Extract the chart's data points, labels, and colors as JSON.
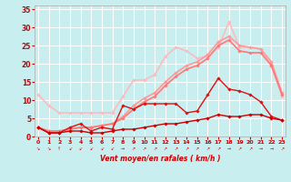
{
  "background_color": "#c8eef0",
  "grid_color": "#ffffff",
  "x_ticks": [
    0,
    1,
    2,
    3,
    4,
    5,
    6,
    7,
    8,
    9,
    10,
    11,
    12,
    13,
    14,
    15,
    16,
    17,
    18,
    19,
    20,
    21,
    22,
    23
  ],
  "xlim": [
    -0.3,
    23.3
  ],
  "ylim": [
    0,
    36
  ],
  "y_ticks": [
    0,
    5,
    10,
    15,
    20,
    25,
    30,
    35
  ],
  "xlabel": "Vent moyen/en rafales ( km/h )",
  "xlabel_color": "#cc0000",
  "tick_color": "#cc0000",
  "series": [
    {
      "name": "light_pink_high",
      "color": "#ffbbbb",
      "linewidth": 1.2,
      "marker": "D",
      "markersize": 1.8,
      "y": [
        11.5,
        8.5,
        6.5,
        6.5,
        6.5,
        6.5,
        6.5,
        6.5,
        11.0,
        15.5,
        15.5,
        17.0,
        22.0,
        24.5,
        23.5,
        21.5,
        22.0,
        24.5,
        31.5,
        24.5,
        24.5,
        24.0,
        19.5,
        11.0
      ]
    },
    {
      "name": "pink_medium_high",
      "color": "#ff9999",
      "linewidth": 1.2,
      "marker": "D",
      "markersize": 1.8,
      "y": [
        2.5,
        1.5,
        1.5,
        2.0,
        2.5,
        2.5,
        3.0,
        3.5,
        5.5,
        8.5,
        10.5,
        12.0,
        15.0,
        17.5,
        19.5,
        20.5,
        22.5,
        26.0,
        27.5,
        25.0,
        24.5,
        24.0,
        20.5,
        12.0
      ]
    },
    {
      "name": "pink_medium",
      "color": "#ff7777",
      "linewidth": 1.2,
      "marker": "D",
      "markersize": 1.8,
      "y": [
        2.5,
        1.5,
        1.5,
        2.0,
        2.5,
        2.5,
        3.0,
        3.5,
        5.0,
        7.5,
        9.5,
        11.0,
        14.0,
        16.5,
        18.5,
        19.5,
        21.5,
        25.0,
        26.5,
        23.5,
        23.0,
        23.0,
        19.5,
        11.5
      ]
    },
    {
      "name": "red_jagged",
      "color": "#dd1111",
      "linewidth": 1.0,
      "marker": "D",
      "markersize": 1.8,
      "y": [
        2.5,
        1.0,
        1.0,
        2.5,
        3.5,
        1.5,
        2.5,
        2.0,
        8.5,
        7.5,
        9.0,
        9.0,
        9.0,
        9.0,
        6.5,
        7.0,
        11.5,
        16.0,
        13.0,
        12.5,
        11.5,
        9.5,
        5.5,
        4.5
      ]
    },
    {
      "name": "red_flat_low",
      "color": "#cc0000",
      "linewidth": 1.0,
      "marker": "D",
      "markersize": 1.8,
      "y": [
        2.5,
        1.0,
        1.0,
        1.5,
        1.5,
        1.0,
        1.0,
        1.5,
        2.0,
        2.0,
        2.5,
        3.0,
        3.5,
        3.5,
        4.0,
        4.5,
        5.0,
        6.0,
        5.5,
        5.5,
        6.0,
        6.0,
        5.0,
        4.5
      ]
    }
  ],
  "arrow_color": "#cc0000",
  "arrow_syms": [
    "↘",
    "↘",
    "↑",
    "↙",
    "↙",
    "↙",
    "↙",
    "↙",
    "→",
    "↗",
    "↗",
    "↗",
    "↗",
    "↗",
    "↗",
    "↗",
    "↗",
    "↗",
    "→",
    "↗",
    "↗",
    "→",
    "→",
    "↗"
  ]
}
